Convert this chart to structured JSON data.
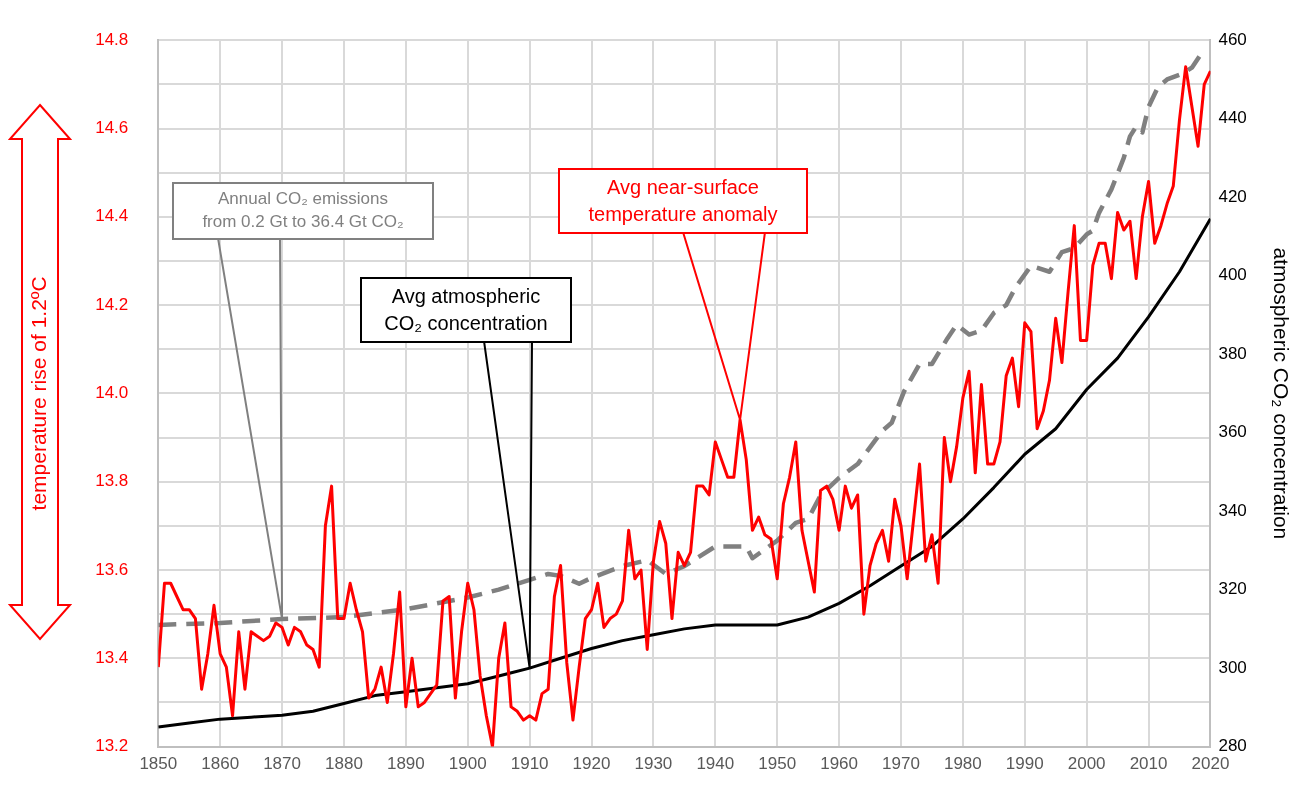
{
  "chart_data": {
    "type": "line",
    "ylabel": "temperature rise of 1.2ºC",
    "y2label": "atmospheric CO₂ concentration",
    "xlim": [
      1850,
      2020
    ],
    "xticks": [
      1850,
      1860,
      1870,
      1880,
      1890,
      1900,
      1910,
      1920,
      1930,
      1940,
      1950,
      1960,
      1970,
      1980,
      1990,
      2000,
      2010,
      2020
    ],
    "ylim": [
      13.2,
      14.8
    ],
    "yticks": [
      13.2,
      {
        "value": 13.3,
        "label": null
      },
      13.4,
      {
        "value": 13.5,
        "label": null
      },
      13.6,
      {
        "value": 13.7,
        "label": null
      },
      13.8,
      {
        "value": 13.9,
        "label": null
      },
      {
        "value": 14,
        "label": "14.0"
      },
      {
        "value": 14.1,
        "label": null
      },
      14.2,
      {
        "value": 14.3,
        "label": null
      },
      14.4,
      {
        "value": 14.5,
        "label": null
      },
      14.6,
      {
        "value": 14.7,
        "label": null
      },
      14.8
    ],
    "y2lim": [
      280,
      460
    ],
    "y2ticks": [
      280,
      300,
      320,
      340,
      360,
      380,
      400,
      420,
      440,
      460
    ],
    "grid": true,
    "legend": false,
    "marker": "none",
    "series": [
      {
        "color": "#ff0000",
        "axis": "y",
        "line_style": "solid",
        "x": [
          1850,
          1851,
          1852,
          1853,
          1854,
          1855,
          1856,
          1857,
          1858,
          1859,
          1860,
          1861,
          1862,
          1863,
          1864,
          1865,
          1866,
          1867,
          1868,
          1869,
          1870,
          1871,
          1872,
          1873,
          1874,
          1875,
          1876,
          1877,
          1878,
          1879,
          1880,
          1881,
          1882,
          1883,
          1884,
          1885,
          1886,
          1887,
          1888,
          1889,
          1890,
          1891,
          1892,
          1893,
          1894,
          1895,
          1896,
          1897,
          1898,
          1899,
          1900,
          1901,
          1902,
          1903,
          1904,
          1905,
          1906,
          1907,
          1908,
          1909,
          1910,
          1911,
          1912,
          1913,
          1914,
          1915,
          1916,
          1917,
          1918,
          1919,
          1920,
          1921,
          1922,
          1923,
          1924,
          1925,
          1926,
          1927,
          1928,
          1929,
          1930,
          1931,
          1932,
          1933,
          1934,
          1935,
          1936,
          1937,
          1938,
          1939,
          1940,
          1941,
          1942,
          1943,
          1944,
          1945,
          1946,
          1947,
          1948,
          1949,
          1950,
          1951,
          1952,
          1953,
          1954,
          1955,
          1956,
          1957,
          1958,
          1959,
          1960,
          1961,
          1962,
          1963,
          1964,
          1965,
          1966,
          1967,
          1968,
          1969,
          1970,
          1971,
          1972,
          1973,
          1974,
          1975,
          1976,
          1977,
          1978,
          1979,
          1980,
          1981,
          1982,
          1983,
          1984,
          1985,
          1986,
          1987,
          1988,
          1989,
          1990,
          1991,
          1992,
          1993,
          1994,
          1995,
          1996,
          1997,
          1998,
          1999,
          2000,
          2001,
          2002,
          2003,
          2004,
          2005,
          2006,
          2007,
          2008,
          2009,
          2010,
          2011,
          2012,
          2013,
          2014,
          2015,
          2016,
          2017,
          2018,
          2019,
          2020
        ],
        "values": [
          13.38,
          13.57,
          13.57,
          13.54,
          13.51,
          13.51,
          13.49,
          13.33,
          13.41,
          13.52,
          13.41,
          13.38,
          13.27,
          13.46,
          13.33,
          13.46,
          13.45,
          13.44,
          13.45,
          13.48,
          13.47,
          13.43,
          13.47,
          13.46,
          13.43,
          13.42,
          13.38,
          13.7,
          13.79,
          13.49,
          13.49,
          13.57,
          13.51,
          13.46,
          13.31,
          13.33,
          13.38,
          13.3,
          13.41,
          13.55,
          13.29,
          13.4,
          13.29,
          13.3,
          13.32,
          13.34,
          13.53,
          13.54,
          13.31,
          13.46,
          13.57,
          13.51,
          13.36,
          13.27,
          13.2,
          13.4,
          13.48,
          13.29,
          13.28,
          13.26,
          13.27,
          13.26,
          13.32,
          13.33,
          13.54,
          13.61,
          13.39,
          13.26,
          13.38,
          13.49,
          13.51,
          13.57,
          13.47,
          13.49,
          13.5,
          13.53,
          13.69,
          13.58,
          13.6,
          13.42,
          13.62,
          13.71,
          13.66,
          13.49,
          13.64,
          13.61,
          13.64,
          13.79,
          13.79,
          13.77,
          13.89,
          13.85,
          13.81,
          13.81,
          13.94,
          13.85,
          13.69,
          13.72,
          13.68,
          13.67,
          13.58,
          13.75,
          13.81,
          13.89,
          13.69,
          13.62,
          13.55,
          13.78,
          13.79,
          13.76,
          13.69,
          13.79,
          13.74,
          13.77,
          13.5,
          13.61,
          13.66,
          13.69,
          13.62,
          13.76,
          13.7,
          13.58,
          13.71,
          13.84,
          13.62,
          13.68,
          13.57,
          13.9,
          13.8,
          13.88,
          13.99,
          14.05,
          13.82,
          14.02,
          13.84,
          13.84,
          13.89,
          14.04,
          14.08,
          13.97,
          14.16,
          14.14,
          13.92,
          13.96,
          14.03,
          14.17,
          14.07,
          14.23,
          14.38,
          14.12,
          14.12,
          14.29,
          14.34,
          14.34,
          14.26,
          14.41,
          14.37,
          14.39,
          14.26,
          14.4,
          14.48,
          14.34,
          14.38,
          14.43,
          14.47,
          14.62,
          14.74,
          14.65,
          14.56,
          14.7,
          14.73
        ]
      },
      {
        "color": "#000000",
        "axis": "y2",
        "line_style": "solid",
        "x": [
          1850,
          1855,
          1860,
          1865,
          1870,
          1875,
          1880,
          1885,
          1890,
          1895,
          1900,
          1905,
          1910,
          1915,
          1920,
          1925,
          1930,
          1935,
          1940,
          1945,
          1950,
          1955,
          1960,
          1965,
          1970,
          1975,
          1980,
          1985,
          1990,
          1995,
          2000,
          2005,
          2010,
          2015,
          2020
        ],
        "values": [
          285,
          286,
          287,
          287.5,
          288,
          289,
          291,
          293,
          294,
          295,
          296,
          298,
          300,
          302.5,
          305,
          307,
          308.5,
          310,
          311,
          311,
          311,
          313,
          316.5,
          321,
          326,
          331,
          338,
          346,
          354.5,
          361,
          371,
          379,
          389.5,
          401,
          414.5
        ]
      },
      {
        "color": "#808080",
        "axis": "y2",
        "line_style": "dashed",
        "x": [
          1850,
          1860,
          1870,
          1880,
          1890,
          1900,
          1905,
          1910,
          1913,
          1915,
          1918,
          1920,
          1925,
          1929,
          1932,
          1935,
          1940,
          1945,
          1946,
          1950,
          1953,
          1955,
          1957,
          1960,
          1963,
          1967,
          1968.5,
          1970.5,
          1973,
          1975,
          1977.5,
          1979,
          1981,
          1983,
          1985,
          1987,
          1988.5,
          1991,
          1994,
          1996,
          1998,
          2000,
          2001,
          2002,
          2004,
          2006,
          2007,
          2008,
          2009,
          2010,
          2011.5,
          2013,
          2015.5,
          2017,
          2018.5,
          2019.5
        ],
        "values": [
          311,
          311.5,
          312.5,
          313,
          315,
          318,
          320,
          322.5,
          324,
          323.5,
          321.5,
          323,
          326,
          327.5,
          324,
          326,
          331,
          331,
          328,
          332.5,
          337,
          338,
          344,
          348.5,
          352,
          360.5,
          362.5,
          370.5,
          377.5,
          377.5,
          384,
          387.5,
          385,
          386,
          390.5,
          392.5,
          397,
          402.5,
          401,
          406,
          407,
          410.5,
          411.5,
          416,
          422,
          430,
          435.5,
          438,
          436.5,
          443,
          448,
          450,
          451.5,
          453,
          456.5,
          456.5
        ]
      }
    ],
    "annotations": [
      "Avg near-surface temperature anomaly",
      "Avg atmospheric CO₂ concentration",
      "Annual CO₂ emissions from 0.2 Gt to 36.4 Gt CO₂"
    ]
  }
}
